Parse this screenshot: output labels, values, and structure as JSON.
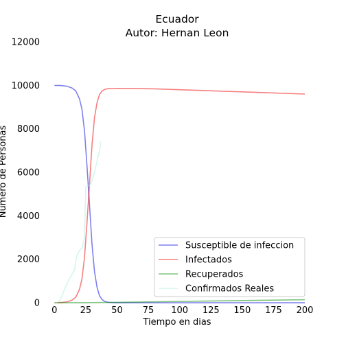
{
  "chart_data": {
    "type": "line",
    "title": "Ecuador",
    "subtitle": "Autor: Hernan Leon",
    "xlabel": "Tiempo en dias",
    "ylabel": "Numero de Personas",
    "xlim": [
      -4,
      200
    ],
    "ylim": [
      0,
      12000
    ],
    "xticks": [
      "0",
      "25",
      "50",
      "75",
      "100",
      "125",
      "150",
      "175",
      "200"
    ],
    "yticks": [
      "0",
      "2000",
      "4000",
      "6000",
      "8000",
      "10000",
      "12000"
    ],
    "grid": false,
    "legend_position": "lower-right",
    "series": [
      {
        "name": "Susceptible de infeccion",
        "color": "#0000dd",
        "x": [
          0,
          5,
          10,
          14,
          17,
          20,
          22,
          24,
          26,
          28,
          30,
          32,
          34,
          36,
          38,
          40,
          42,
          44,
          46,
          50,
          60,
          80,
          100,
          150,
          200
        ],
        "values": [
          9999,
          9990,
          9960,
          9880,
          9750,
          9380,
          8900,
          7900,
          6300,
          4500,
          2700,
          1450,
          720,
          330,
          150,
          68,
          30,
          15,
          8,
          3,
          2,
          1,
          1,
          1,
          1
        ]
      },
      {
        "name": "Infectados",
        "color": "#ee0000",
        "x": [
          0,
          5,
          10,
          14,
          17,
          20,
          22,
          24,
          26,
          28,
          30,
          32,
          34,
          36,
          38,
          40,
          42,
          44,
          46,
          50,
          60,
          80,
          100,
          150,
          200
        ],
        "values": [
          1,
          10,
          40,
          120,
          250,
          620,
          1100,
          2090,
          3680,
          5470,
          7250,
          8500,
          9200,
          9570,
          9740,
          9810,
          9840,
          9850,
          9852,
          9860,
          9860,
          9840,
          9800,
          9700,
          9600
        ]
      },
      {
        "name": "Recuperados",
        "color": "#008800",
        "x": [
          0,
          25,
          50,
          100,
          150,
          200
        ],
        "values": [
          0,
          4,
          20,
          60,
          100,
          140
        ]
      },
      {
        "name": "Confirmados Reales",
        "color": "#aaeedd",
        "x": [
          0,
          2,
          4,
          6,
          8,
          10,
          12,
          14,
          16,
          18,
          20,
          22,
          24,
          25,
          26,
          28,
          30,
          32,
          34,
          36,
          37
        ],
        "values": [
          0,
          10,
          80,
          300,
          600,
          900,
          1100,
          1300,
          1500,
          2200,
          2400,
          2500,
          3000,
          5300,
          5350,
          5400,
          5600,
          6000,
          6500,
          7000,
          7400
        ]
      }
    ]
  }
}
